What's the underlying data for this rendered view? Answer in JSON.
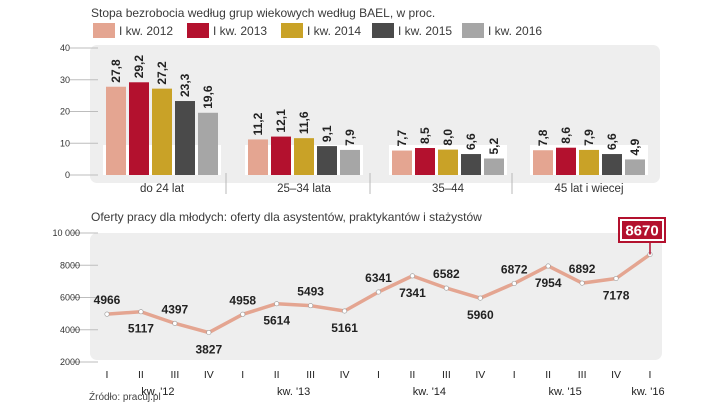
{
  "chart_data": [
    {
      "type": "bar",
      "title": "Stopa bezrobocia według grup wiekowych według BAEL, w proc.",
      "categories": [
        "do 24 lat",
        "25–34 lata",
        "35–44",
        "45 lat i wiecej"
      ],
      "series": [
        {
          "name": "I kw. 2012",
          "values": [
            27.8,
            11.2,
            7.7,
            7.8
          ],
          "labels": [
            "27,8",
            "11,2",
            "7,7",
            "7,8"
          ]
        },
        {
          "name": "I kw. 2013",
          "values": [
            29.2,
            12.1,
            8.5,
            8.6
          ],
          "labels": [
            "29,2",
            "12,1",
            "8,5",
            "8,6"
          ]
        },
        {
          "name": "I kw. 2014",
          "values": [
            27.2,
            11.6,
            8.0,
            7.9
          ],
          "labels": [
            "27,2",
            "11,6",
            "8,0",
            "7,9"
          ]
        },
        {
          "name": "I kw. 2015",
          "values": [
            23.3,
            9.1,
            6.6,
            6.6
          ],
          "labels": [
            "23,3",
            "9,1",
            "6,6",
            "6,6"
          ]
        },
        {
          "name": "I kw. 2016",
          "values": [
            19.6,
            7.9,
            5.2,
            4.9
          ],
          "labels": [
            "19,6",
            "7,9",
            "5,2",
            "4,9"
          ]
        }
      ],
      "ylim": [
        0,
        40
      ],
      "yticks": [
        0,
        10,
        20,
        30,
        40
      ],
      "ytick_labels": [
        "0",
        "10",
        "20",
        "30",
        "40"
      ],
      "legend": "top",
      "grid": false
    },
    {
      "type": "line",
      "title": "Oferty pracy dla młodych: oferty dla asystentów, praktykantów i stażystów",
      "x": [
        "I",
        "II",
        "III",
        "IV",
        "I",
        "II",
        "III",
        "IV",
        "I",
        "II",
        "III",
        "IV",
        "I",
        "II",
        "III",
        "IV",
        "I"
      ],
      "values": [
        4966,
        5117,
        4397,
        3827,
        4958,
        5614,
        5493,
        5161,
        6341,
        7341,
        6582,
        5960,
        6872,
        7954,
        6892,
        7178,
        8670
      ],
      "value_labels": [
        "4966",
        "5117",
        "4397",
        "3827",
        "4958",
        "5614",
        "5493",
        "5161",
        "6341",
        "7341",
        "6582",
        "5960",
        "6872",
        "7954",
        "6892",
        "7178",
        "8670"
      ],
      "label_side": [
        "top",
        "bottom",
        "top",
        "bottom",
        "top",
        "bottom",
        "top",
        "bottom",
        "top",
        "bottom",
        "top",
        "bottom",
        "top",
        "bottom",
        "top",
        "bottom",
        "top"
      ],
      "years": [
        {
          "label": "kw. '12",
          "start": 0,
          "end": 3
        },
        {
          "label": "kw. '13",
          "start": 4,
          "end": 7
        },
        {
          "label": "kw. '14",
          "start": 8,
          "end": 11
        },
        {
          "label": "kw. '15",
          "start": 12,
          "end": 15
        },
        {
          "label": "kw. '16",
          "start": 16,
          "end": 16
        }
      ],
      "ylim": [
        2000,
        10000
      ],
      "yticks": [
        2000,
        4000,
        6000,
        8000,
        10000
      ],
      "ytick_labels": [
        "2000",
        "4000",
        "6000",
        "8000",
        "10 000"
      ],
      "highlight_index": 16,
      "source": "Źródło: pracuj.pl"
    }
  ],
  "colors": {
    "series": [
      "#e4a591",
      "#b3112e",
      "#c9a227",
      "#4a4a4a",
      "#a6a6a6"
    ],
    "panel": "#eeeeee",
    "line": "#e4a591",
    "highlight": "#b3112e"
  }
}
